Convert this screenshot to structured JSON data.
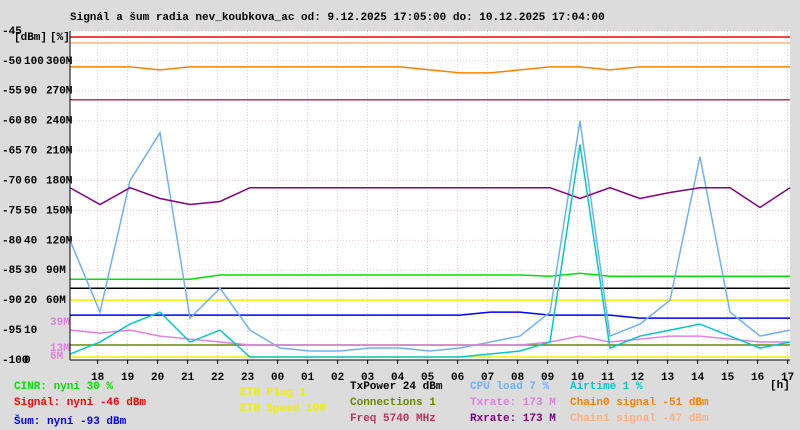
{
  "chart_data": {
    "type": "line",
    "title": "Signál a šum radia nev_koubkova_ac od: 9.12.2025 17:05:00 do: 10.12.2025 17:04:00",
    "y_unit_label": "[dBm]",
    "y2_unit_label": "[%]",
    "x_unit_label": "[h]",
    "left_labels": [
      "39M",
      "13M",
      "6M"
    ],
    "grid": true,
    "xlim": [
      0,
      24
    ],
    "xticks": [
      {
        "value": 0.92,
        "label": "18"
      },
      {
        "value": 1.92,
        "label": "19"
      },
      {
        "value": 2.92,
        "label": "20"
      },
      {
        "value": 3.92,
        "label": "21"
      },
      {
        "value": 4.92,
        "label": "22"
      },
      {
        "value": 5.92,
        "label": "23"
      },
      {
        "value": 6.92,
        "label": "00"
      },
      {
        "value": 7.92,
        "label": "01"
      },
      {
        "value": 8.92,
        "label": "02"
      },
      {
        "value": 9.92,
        "label": "03"
      },
      {
        "value": 10.92,
        "label": "04"
      },
      {
        "value": 11.92,
        "label": "05"
      },
      {
        "value": 12.92,
        "label": "06"
      },
      {
        "value": 13.92,
        "label": "07"
      },
      {
        "value": 14.92,
        "label": "08"
      },
      {
        "value": 15.92,
        "label": "09"
      },
      {
        "value": 16.92,
        "label": "10"
      },
      {
        "value": 17.92,
        "label": "11"
      },
      {
        "value": 18.92,
        "label": "12"
      },
      {
        "value": 19.92,
        "label": "13"
      },
      {
        "value": 20.92,
        "label": "14"
      },
      {
        "value": 21.92,
        "label": "15"
      },
      {
        "value": 22.92,
        "label": "16"
      },
      {
        "value": 23.92,
        "label": "17"
      }
    ],
    "ylim": [
      -100,
      -45
    ],
    "yticks": [
      -45,
      -50,
      -55,
      -60,
      -65,
      -70,
      -75,
      -80,
      -85,
      -90,
      -95,
      -100
    ],
    "y2lim": [
      0,
      110
    ],
    "y2ticks": [
      100,
      90,
      80,
      70,
      60,
      50,
      40,
      30,
      20,
      10,
      0
    ],
    "y3lim": [
      0,
      330
    ],
    "y3ticks": [
      {
        "value": 300,
        "label": "300M"
      },
      {
        "value": 270,
        "label": "270M"
      },
      {
        "value": 240,
        "label": "240M"
      },
      {
        "value": 210,
        "label": "210M"
      },
      {
        "value": 180,
        "label": "180M"
      },
      {
        "value": 150,
        "label": "150M"
      },
      {
        "value": 120,
        "label": "120M"
      },
      {
        "value": 90,
        "label": "90M"
      },
      {
        "value": 60,
        "label": "60M"
      }
    ],
    "x": [
      0,
      1,
      2,
      3,
      4,
      5,
      6,
      7,
      8,
      9,
      10,
      11,
      12,
      13,
      14,
      15,
      16,
      17,
      18,
      19,
      20,
      21,
      22,
      23,
      24
    ],
    "series": [
      {
        "name": "CINR: nyní 30 %",
        "color": "#00e000",
        "values": [
          -86.5,
          -86.5,
          -86.5,
          -86.5,
          -86.5,
          -85.8,
          -85.8,
          -85.8,
          -85.8,
          -85.8,
          -85.8,
          -85.8,
          -85.8,
          -85.8,
          -85.8,
          -85.8,
          -86,
          -85.5,
          -86,
          -86,
          -86,
          -86,
          -86,
          -86,
          -86
        ]
      },
      {
        "name": "Signál: nyní -46 dBm",
        "color": "#ff0000",
        "values": [
          -46,
          -46,
          -46,
          -46,
          -46,
          -46,
          -46,
          -46,
          -46,
          -46,
          -46,
          -46,
          -46,
          -46,
          -46,
          -46,
          -46,
          -46,
          -46,
          -46,
          -46,
          -46,
          -46,
          -46,
          -46
        ]
      },
      {
        "name": "Šum: nyní -93 dBm",
        "color": "#0000ff",
        "values": [
          -92.5,
          -92.5,
          -92.5,
          -92.5,
          -92.5,
          -92.5,
          -92.5,
          -92.5,
          -92.5,
          -92.5,
          -92.5,
          -92.5,
          -92.5,
          -92.5,
          -92,
          -92,
          -92.5,
          -92.5,
          -92.5,
          -93,
          -93,
          -93,
          -93,
          -93,
          -93
        ]
      },
      {
        "name": "ETH Plug 1",
        "color": "#f0f000",
        "values": [
          -90,
          -90,
          -90,
          -90,
          -90,
          -90,
          -90,
          -90,
          -90,
          -90,
          -90,
          -90,
          -90,
          -90,
          -90,
          -90,
          -90,
          -90,
          -90,
          -90,
          -90,
          -90,
          -90,
          -90,
          -90
        ]
      },
      {
        "name": "ETH Speed 100",
        "color": "#f0f000",
        "values": [
          -99.5,
          -99.5,
          -99.5,
          -99.5,
          -99.5,
          -99.5,
          -99.5,
          -99.5,
          -99.5,
          -99.5,
          -99.5,
          -99.5,
          -99.5,
          -99.5,
          -99.5,
          -99.5,
          -99.5,
          -99.5,
          -99.5,
          -99.5,
          -99.5,
          -99.5,
          -99.5,
          -99.5,
          -99.5
        ]
      },
      {
        "name": "TxPower 24 dBm",
        "color": "#000000",
        "values": [
          -88,
          -88,
          -88,
          -88,
          -88,
          -88,
          -88,
          -88,
          -88,
          -88,
          -88,
          -88,
          -88,
          -88,
          -88,
          -88,
          -88,
          -88,
          -88,
          -88,
          -88,
          -88,
          -88,
          -88,
          -88
        ]
      },
      {
        "name": "Connections 1",
        "color": "#6a8a00",
        "values": [
          -97.5,
          -97.5,
          -97.5,
          -97.5,
          -97.5,
          -97.5,
          -97.5,
          -97.5,
          -97.5,
          -97.5,
          -97.5,
          -97.5,
          -97.5,
          -97.5,
          -97.5,
          -97.5,
          -97.5,
          -97.5,
          -97.5,
          -97.5,
          -97.5,
          -97.5,
          -97.5,
          -97.5,
          -97.5
        ]
      },
      {
        "name": "Freq 5740 MHz",
        "color": "#c03060",
        "values": [
          -56.5,
          -56.5,
          -56.5,
          -56.5,
          -56.5,
          -56.5,
          -56.5,
          -56.5,
          -56.5,
          -56.5,
          -56.5,
          -56.5,
          -56.5,
          -56.5,
          -56.5,
          -56.5,
          -56.5,
          -56.5,
          -56.5,
          -56.5,
          -56.5,
          -56.5,
          -56.5,
          -56.5,
          -56.5
        ]
      },
      {
        "name": "CPU load 7 %",
        "color": "#70b0ff",
        "values": [
          -80,
          -92,
          -70,
          -62,
          -93,
          -88,
          -95,
          -98,
          -98.5,
          -98.5,
          -98,
          -98,
          -98.5,
          -98,
          -97,
          -96,
          -92,
          -60,
          -96,
          -94,
          -90,
          -66,
          -92,
          -96,
          -95
        ]
      },
      {
        "name": "Txrate: 173 M",
        "color": "#e080e0",
        "values": [
          -95,
          -95.5,
          -95,
          -96,
          -96.5,
          -97,
          -97.5,
          -97.5,
          -97.5,
          -97.5,
          -97.5,
          -97.5,
          -97.5,
          -97.5,
          -97.5,
          -97.5,
          -97,
          -96,
          -97,
          -96.5,
          -96,
          -96,
          -96.5,
          -97,
          -97
        ]
      },
      {
        "name": "Rxrate: 173 M",
        "color": "#800080",
        "values": [
          -71.2,
          -74,
          -71.2,
          -73,
          -74,
          -73.5,
          -71.2,
          -71.2,
          -71.2,
          -71.2,
          -71.2,
          -71.2,
          -71.2,
          -71.2,
          -71.2,
          -71.2,
          -71.2,
          -73,
          -71.2,
          -73,
          -72,
          -71.2,
          -71.2,
          -74.5,
          -71.2
        ]
      },
      {
        "name": "Airtime 1 %",
        "color": "#00c8c8",
        "values": [
          -99,
          -97,
          -94,
          -92,
          -97,
          -95,
          -99.5,
          -99.5,
          -99.5,
          -99.5,
          -99.5,
          -99.5,
          -99.5,
          -99.5,
          -99,
          -98.5,
          -97,
          -64,
          -98,
          -96,
          -95,
          -94,
          -96,
          -98,
          -97
        ]
      },
      {
        "name": "Chain0 signal -51 dBm",
        "color": "#ff8000",
        "values": [
          -51,
          -51,
          -51,
          -51.5,
          -51,
          -51,
          -51,
          -51,
          -51,
          -51,
          -51,
          -51,
          -51.5,
          -52,
          -52,
          -51.5,
          -51,
          -51,
          -51.5,
          -51,
          -51,
          -51,
          -51,
          -51,
          -51
        ]
      },
      {
        "name": "Chain1 signal -47 dBm",
        "color": "#ffb080",
        "values": [
          -47,
          -47,
          -47,
          -47,
          -47,
          -47,
          -47,
          -47,
          -47,
          -47,
          -47,
          -47,
          -47,
          -47,
          -47,
          -47,
          -47,
          -47,
          -47,
          -47,
          -47,
          -47,
          -47,
          -47,
          -47
        ]
      }
    ]
  }
}
